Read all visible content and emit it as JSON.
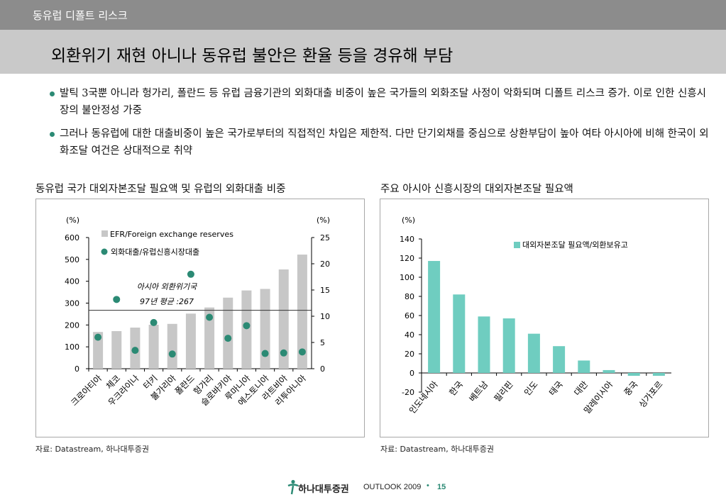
{
  "header": {
    "section": "동유럽 디폴트 리스크",
    "title": "외환위기 재현 아니나 동유럽 불안은 환율 등을 경유해 부담"
  },
  "bullets": [
    "발틱 3국뿐 아니라 헝가리, 폴란드 등 유럽 금융기관의 외화대출 비중이 높은 국가들의 외화조달 사정이 악화되며 디폴트 리스크 증가. 이로 인한 신흥시장의 불안정성 가중",
    "그러나 동유럽에 대한 대출비중이 높은 국가로부터의 직접적인 차입은 제한적. 다만 단기외채를 중심으로 상환부담이 높아 여타 아시아에 비해 한국이 외화조달 여건은 상대적으로 취약"
  ],
  "colors": {
    "bar_gray": "#c7c7c7",
    "dot_green": "#2b8a74",
    "bar_teal": "#6fcdc0",
    "frame": "#a8a8a8",
    "axis": "#000000"
  },
  "chart_data": [
    {
      "type": "bar",
      "title": "동유럽 국가 대외자본조달 필요액 및 유럽의 외화대출 비중",
      "left_unit": "(%)",
      "right_unit": "(%)",
      "categories": [
        "크로아티아",
        "체코",
        "우크라이나",
        "터키",
        "불가리아",
        "폴란드",
        "헝가리",
        "슬로바키아",
        "루마니아",
        "에스토니아",
        "라트비아",
        "리투아니아"
      ],
      "series": [
        {
          "name": "EFR/Foreign exchange reserves",
          "kind": "bar",
          "axis": "left",
          "values": [
            168,
            172,
            188,
            201,
            205,
            252,
            280,
            325,
            358,
            365,
            454,
            522
          ]
        },
        {
          "name": "외화대출/유럽신흥시장대출",
          "kind": "dot",
          "axis": "right",
          "values": [
            6,
            13.2,
            3.5,
            8.8,
            2.8,
            18,
            9.8,
            5.8,
            8.2,
            2.9,
            3,
            3.2
          ]
        }
      ],
      "ylim_left": [
        0,
        600
      ],
      "yticks_left": [
        0,
        100,
        200,
        300,
        400,
        500,
        600
      ],
      "ylim_right": [
        0,
        25
      ],
      "yticks_right": [
        0,
        5,
        10,
        15,
        20,
        25
      ],
      "reference_line": {
        "value": 267,
        "axis": "left",
        "label_line1": "아시아 외환위기국",
        "label_line2": "97년 평균 :267"
      },
      "legend": "top-left",
      "source": "자료: Datastream, 하나대투증권"
    },
    {
      "type": "bar",
      "title": "주요 아시아 신흥시장의 대외자본조달 필요액",
      "left_unit": "(%)",
      "categories": [
        "인도네시아",
        "한국",
        "베트남",
        "필리핀",
        "인도",
        "태국",
        "대만",
        "말레이시아",
        "중국",
        "싱가포르"
      ],
      "series": [
        {
          "name": "대외자본조달 필요액/외환보유고",
          "kind": "bar",
          "axis": "left",
          "values": [
            117,
            82,
            59,
            57,
            41,
            28,
            13,
            3,
            -3,
            -3
          ]
        }
      ],
      "ylim": [
        -20,
        140
      ],
      "yticks": [
        -20,
        0,
        20,
        40,
        60,
        80,
        100,
        120,
        140
      ],
      "legend": "top-right",
      "source": "자료: Datastream, 하나대투증권"
    }
  ],
  "footer": {
    "brand": "하나대투증권",
    "outlook": "OUTLOOK 2009",
    "sep": "•",
    "page": "15"
  }
}
